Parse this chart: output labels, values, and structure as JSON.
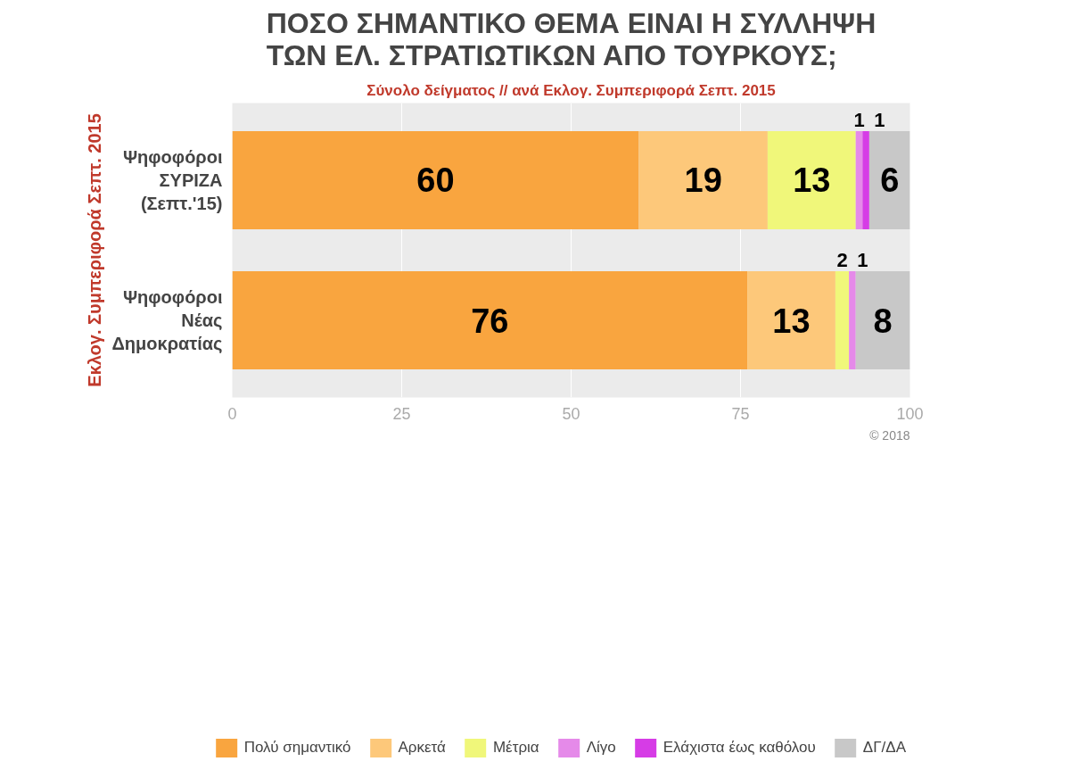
{
  "chart_data": {
    "type": "bar",
    "orientation": "horizontal",
    "stacked": true,
    "title": "ΠΟΣΟ ΣΗΜΑΝΤΙΚΟ ΘΕΜΑ ΕΙΝΑΙ Η ΣΥΛΛΗΨΗ ΤΩΝ ΕΛ. ΣΤΡΑΤΙΩΤΙΚΩΝ ΑΠΟ ΤΟΥΡΚΟΥΣ;",
    "subtitle": "Σύνολο δείγματος // ανά Εκλογ. Συμπεριφορά Σεπτ. 2015",
    "ylabel": "Εκλογ. Συμπεριφορά Σεπτ. 2015",
    "categories": [
      "Ψηφοφόροι ΣΥΡΙΖΑ (Σεπτ.'15)",
      "Ψηφοφόροι Νέας Δημοκρατίας"
    ],
    "series": [
      {
        "name": "Πολύ σημαντικό",
        "color": "#f9a53f",
        "values": [
          60,
          76
        ],
        "value_labels": [
          "60",
          "76"
        ]
      },
      {
        "name": "Αρκετά",
        "color": "#fdc87a",
        "values": [
          19,
          13
        ],
        "value_labels": [
          "19",
          "13"
        ]
      },
      {
        "name": "Μέτρια",
        "color": "#f0f77a",
        "values": [
          13,
          2
        ],
        "value_labels": [
          "13",
          "2"
        ]
      },
      {
        "name": "Λίγο",
        "color": "#e58ae9",
        "values": [
          1,
          1
        ],
        "value_labels": [
          "1",
          "1"
        ]
      },
      {
        "name": "Ελάχιστα έως καθόλου",
        "color": "#d63ce6",
        "values": [
          1,
          0
        ],
        "value_labels": [
          "1",
          null
        ]
      },
      {
        "name": "ΔΓ/ΔΑ",
        "color": "#c8c8c8",
        "values": [
          6,
          8
        ],
        "value_labels": [
          "6",
          "8"
        ]
      }
    ],
    "xlim": [
      0,
      100
    ],
    "xticks": [
      0,
      25,
      50,
      75,
      100
    ],
    "grid": "x",
    "legend": "bottom",
    "annotations": [
      "© 2018"
    ]
  }
}
